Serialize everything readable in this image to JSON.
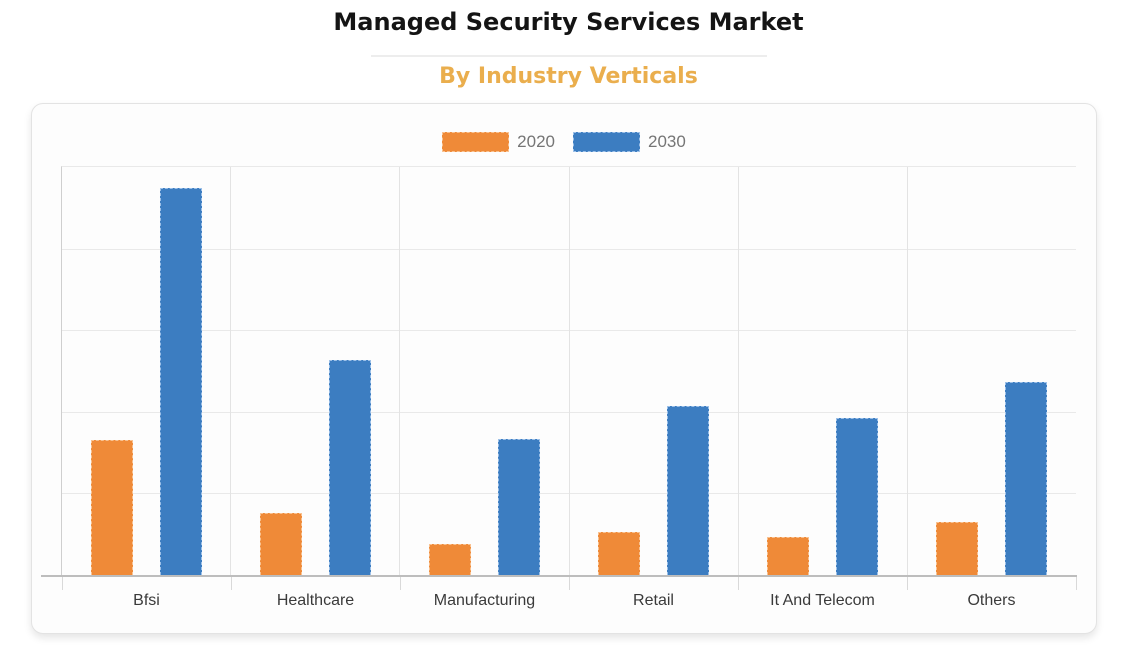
{
  "page": {
    "title": "Managed Security Services Market",
    "subtitle": "By Industry Verticals"
  },
  "colors": {
    "title": "#141414",
    "subtitle": "#EAAE4D",
    "legend_text": "#757575",
    "axis_label": "#3A3A3A",
    "gridline": "#E9E9E9",
    "axis_line": "#BDBDBD",
    "card_background": "#FDFDFD"
  },
  "chart_data": {
    "type": "bar",
    "title": "Managed Security Services Market",
    "subtitle": "By Industry Verticals",
    "categories": [
      "Bfsi",
      "Healthcare",
      "Manufacturing",
      "Retail",
      "It And Telecom",
      "Others"
    ],
    "series": [
      {
        "name": "2020",
        "color": "#EF8A38",
        "border_color": "#F9C291",
        "values": [
          33.1,
          15.2,
          7.6,
          10.5,
          9.3,
          13.0
        ]
      },
      {
        "name": "2030",
        "color": "#3C7DC1",
        "border_color": "#9CC0E8",
        "values": [
          94.9,
          52.7,
          33.3,
          41.4,
          38.5,
          47.3
        ]
      }
    ],
    "xlabel": "",
    "ylabel": "",
    "ylim": [
      0,
      100
    ],
    "gridline_interval": 20,
    "y_tick_labels_visible": false,
    "grid": true,
    "legend_position": "top-center"
  }
}
